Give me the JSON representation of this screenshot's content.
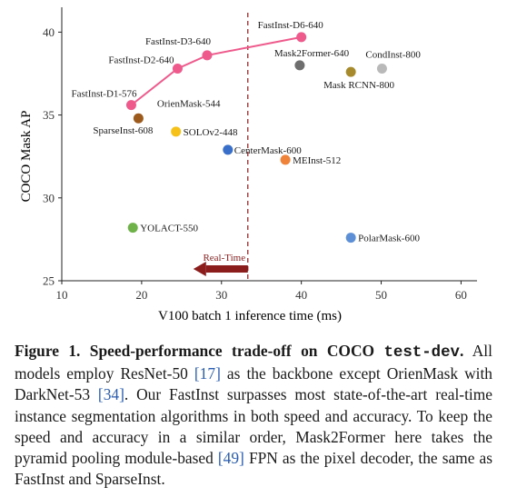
{
  "chart_data": {
    "type": "scatter",
    "xlabel": "V100 batch 1 inference time (ms)",
    "ylabel": "COCO Mask AP",
    "xlim": [
      10,
      62
    ],
    "ylim": [
      25,
      41.5
    ],
    "xticks": [
      "10",
      "20",
      "30",
      "40",
      "50",
      "60"
    ],
    "yticks": [
      "25",
      "30",
      "35",
      "40"
    ],
    "grid": false,
    "realtime_threshold_ms": 33.3,
    "realtime_label": "Real-Time",
    "series": [
      {
        "name": "FastInst",
        "line": true,
        "color": "#ef5a8c",
        "points": [
          {
            "x": 18.7,
            "y": 35.6,
            "label": "FastInst-D1-576"
          },
          {
            "x": 24.5,
            "y": 37.8,
            "label": "FastInst-D2-640"
          },
          {
            "x": 28.2,
            "y": 38.6,
            "label": "FastInst-D3-640"
          },
          {
            "x": 40.0,
            "y": 39.7,
            "label": "FastInst-D6-640"
          }
        ]
      }
    ],
    "points": [
      {
        "x": 19.6,
        "y": 34.8,
        "label": "SparseInst-608",
        "color": "#9c5a1c"
      },
      {
        "x": 24.3,
        "y": 34.0,
        "label": "SOLOv2-448",
        "color": "#f6c219"
      },
      {
        "x": 30.8,
        "y": 32.9,
        "label": "CenterMask-600",
        "color": "#3a6fc9"
      },
      {
        "x": 38.0,
        "y": 32.3,
        "label": "MEInst-512",
        "color": "#f0833a"
      },
      {
        "x": 18.9,
        "y": 28.2,
        "label": "YOLACT-550",
        "color": "#6fb24a"
      },
      {
        "x": 46.2,
        "y": 27.6,
        "label": "PolarMask-600",
        "color": "#5d8fd6"
      },
      {
        "x": 39.8,
        "y": 38.0,
        "label": "Mask2Former-640",
        "color": "#6e6e6e"
      },
      {
        "x": 46.2,
        "y": 37.6,
        "label": "Mask RCNN-800",
        "color": "#a68a2c"
      },
      {
        "x": 50.1,
        "y": 37.8,
        "label": "CondInst-800",
        "color": "#b9b9b9"
      }
    ],
    "extra_labels": [
      {
        "text": "OrienMask-544",
        "x": 25.9,
        "y": 35.5
      }
    ]
  },
  "caption": {
    "figure_label": "Figure 1.",
    "title_bold": "Speed-performance trade-off on COCO",
    "title_mono": "test-dev",
    "title_end": ".",
    "text_1": "All models employ ResNet-50",
    "ref_1": "[17]",
    "text_2": "as the backbone except OrienMask with DarkNet-53",
    "ref_2": "[34]",
    "text_3": ". Our FastInst surpasses most state-of-the-art real-time instance segmentation algorithms in both speed and accuracy. To keep the speed and accuracy in a similar order, Mask2Former here takes the pyramid pooling module-based",
    "ref_3": "[49]",
    "text_4": "FPN as the pixel decoder, the same as FastInst and SparseInst."
  }
}
